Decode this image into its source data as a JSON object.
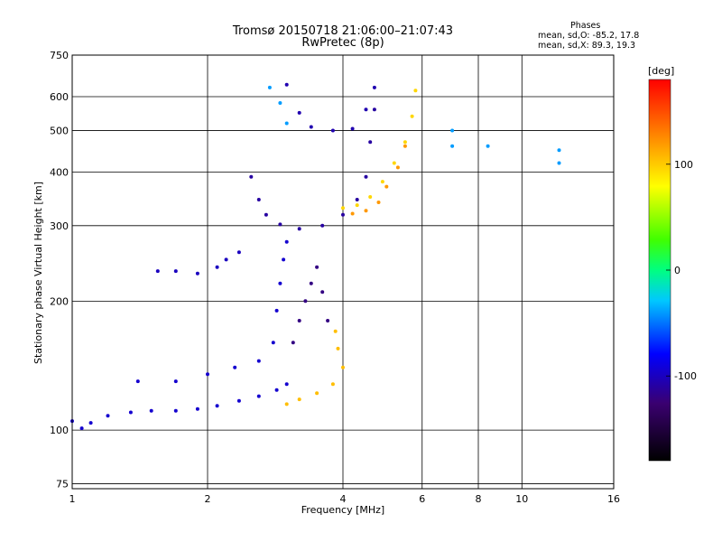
{
  "chart_data": {
    "type": "scatter",
    "title": "Tromsø 20150718 21:06:00–21:07:43",
    "subtitle": "RwPretec (8p)",
    "xlabel": "Frequency [MHz]",
    "ylabel": "Stationary phase Virtual Height [km]",
    "x_scale": "log",
    "y_scale": "log",
    "xlim": [
      1,
      16
    ],
    "ylim": [
      73,
      750
    ],
    "x_ticks": [
      "1",
      "2",
      "4",
      "6",
      "8",
      "10",
      "16"
    ],
    "y_ticks": [
      "75",
      "100",
      "200",
      "300",
      "400",
      "500",
      "600",
      "750"
    ],
    "grid": true,
    "stats_title": "Phases",
    "stats_lines": [
      "mean, sd,O: -85.2, 17.8",
      "mean, sd,X: 89.3, 19.3"
    ],
    "colorbar": {
      "label": "[deg]",
      "range": [
        -180,
        180
      ],
      "ticks": [
        "100",
        "0",
        "-100"
      ],
      "tick_values": [
        100,
        0,
        -100
      ]
    },
    "series": [
      {
        "color_phase": -95,
        "points": [
          [
            1.0,
            105
          ],
          [
            1.05,
            101
          ],
          [
            1.1,
            104
          ],
          [
            1.2,
            108
          ],
          [
            1.35,
            110
          ],
          [
            1.5,
            111
          ],
          [
            1.7,
            111
          ],
          [
            1.9,
            112
          ],
          [
            2.1,
            114
          ],
          [
            2.35,
            117
          ],
          [
            2.6,
            120
          ],
          [
            2.85,
            124
          ],
          [
            3.0,
            128
          ]
        ]
      },
      {
        "color_phase": -95,
        "points": [
          [
            1.4,
            130
          ],
          [
            1.7,
            130
          ],
          [
            2.0,
            135
          ],
          [
            2.3,
            140
          ],
          [
            2.6,
            145
          ],
          [
            2.8,
            160
          ],
          [
            2.85,
            190
          ],
          [
            2.9,
            220
          ],
          [
            2.95,
            250
          ],
          [
            3.0,
            275
          ]
        ]
      },
      {
        "color_phase": -110,
        "points": [
          [
            2.5,
            390
          ],
          [
            2.6,
            345
          ],
          [
            2.7,
            318
          ],
          [
            2.9,
            302
          ],
          [
            3.2,
            295
          ],
          [
            3.6,
            300
          ],
          [
            4.0,
            318
          ],
          [
            4.3,
            345
          ],
          [
            4.5,
            390
          ],
          [
            4.6,
            470
          ],
          [
            4.7,
            560
          ]
        ]
      },
      {
        "color_phase": -105,
        "points": [
          [
            3.0,
            640
          ],
          [
            3.2,
            550
          ],
          [
            3.4,
            510
          ],
          [
            3.8,
            500
          ],
          [
            4.2,
            505
          ],
          [
            4.5,
            560
          ],
          [
            4.7,
            630
          ]
        ]
      },
      {
        "color_phase": -120,
        "points": [
          [
            3.1,
            160
          ],
          [
            3.2,
            180
          ],
          [
            3.3,
            200
          ],
          [
            3.4,
            220
          ],
          [
            3.5,
            240
          ],
          [
            3.6,
            210
          ],
          [
            3.7,
            180
          ]
        ]
      },
      {
        "color_phase": -100,
        "points": [
          [
            1.55,
            235
          ],
          [
            1.7,
            235
          ],
          [
            1.9,
            232
          ],
          [
            2.1,
            240
          ],
          [
            2.2,
            250
          ],
          [
            2.35,
            260
          ]
        ]
      },
      {
        "color_phase": 105,
        "points": [
          [
            3.0,
            115
          ],
          [
            3.2,
            118
          ],
          [
            3.5,
            122
          ],
          [
            3.8,
            128
          ],
          [
            4.0,
            140
          ],
          [
            3.9,
            155
          ],
          [
            3.85,
            170
          ]
        ]
      },
      {
        "color_phase": 95,
        "points": [
          [
            4.0,
            330
          ],
          [
            4.3,
            335
          ],
          [
            4.6,
            350
          ],
          [
            4.9,
            380
          ],
          [
            5.2,
            420
          ],
          [
            5.5,
            470
          ],
          [
            5.7,
            540
          ],
          [
            5.8,
            620
          ]
        ]
      },
      {
        "color_phase": 120,
        "points": [
          [
            4.2,
            320
          ],
          [
            4.5,
            325
          ],
          [
            4.8,
            340
          ],
          [
            5.0,
            370
          ],
          [
            5.3,
            410
          ],
          [
            5.5,
            460
          ]
        ]
      },
      {
        "color_phase": -40,
        "points": [
          [
            2.75,
            630
          ],
          [
            2.9,
            580
          ],
          [
            3.0,
            520
          ],
          [
            7.0,
            500
          ],
          [
            7.0,
            460
          ],
          [
            8.4,
            460
          ],
          [
            12.1,
            450
          ],
          [
            12.1,
            420
          ]
        ]
      }
    ]
  }
}
